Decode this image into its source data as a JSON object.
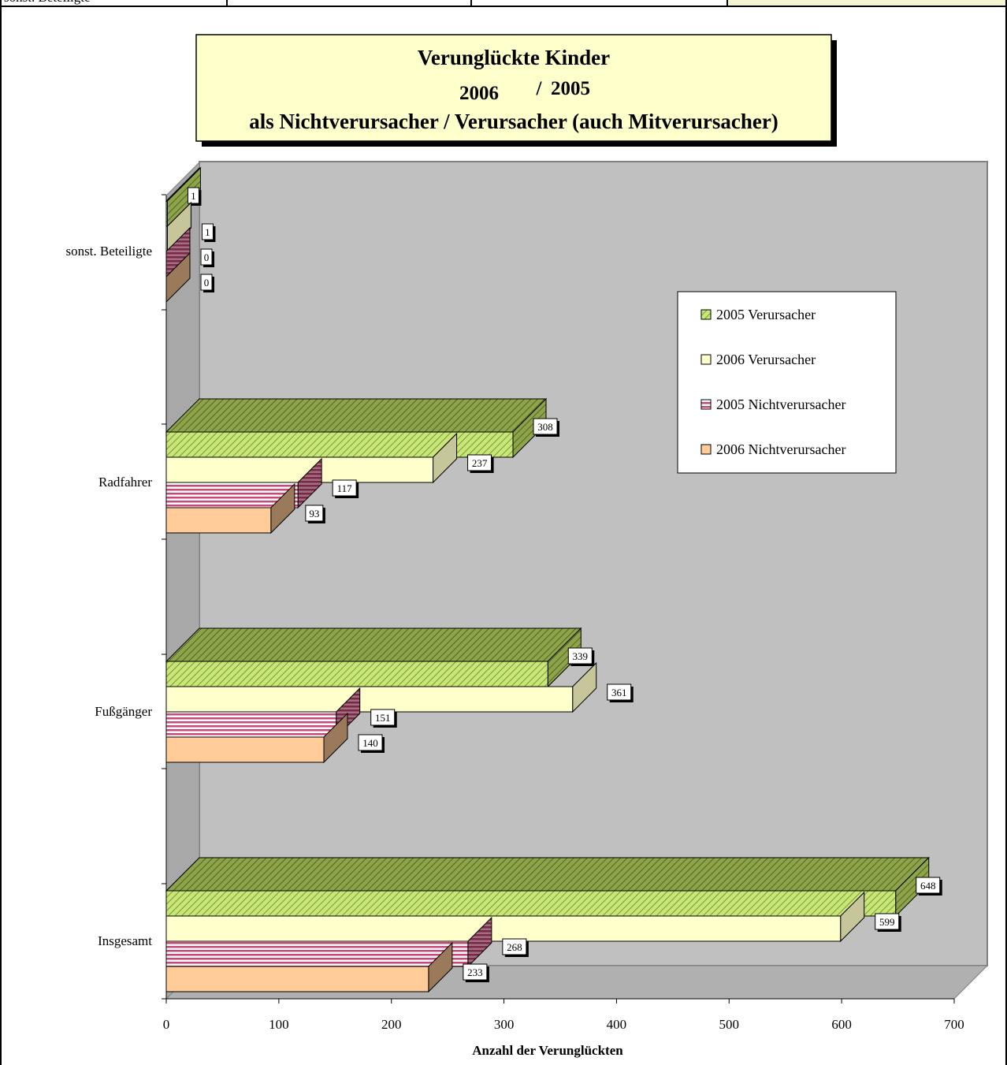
{
  "top_row": {
    "cells": [
      "sonst. Beteiligte",
      "",
      "",
      ""
    ]
  },
  "chart_data": {
    "type": "bar",
    "orientation": "horizontal",
    "three_d": true,
    "title": {
      "line1": "Verunglückte Kinder",
      "line2_left": "2006",
      "line2_sep": "/",
      "line2_right": "2005",
      "line3": "als Nichtverursacher / Verursacher (auch Mitverursacher)"
    },
    "categories": [
      "Insgesamt",
      "Fußgänger",
      "Radfahrer",
      "sonst. Beteiligte"
    ],
    "series": [
      {
        "name": "2005 Verursacher",
        "values": [
          648,
          339,
          308,
          1
        ],
        "color": "#c8e67a",
        "pattern": "diagonal"
      },
      {
        "name": "2006 Verursacher",
        "values": [
          599,
          361,
          237,
          1
        ],
        "color": "#ffffcc",
        "pattern": "solid"
      },
      {
        "name": "2005 Nichtverursacher",
        "values": [
          268,
          151,
          117,
          0
        ],
        "color": "#c84878",
        "pattern": "horizontal-stripes"
      },
      {
        "name": "2006 Nichtverursacher",
        "values": [
          233,
          140,
          93,
          0
        ],
        "color": "#ffcc99",
        "pattern": "solid"
      }
    ],
    "legend_order": [
      "2005 Verursacher",
      "2006 Verursacher",
      "2005 Nichtverursacher",
      "2006 Nichtverursacher"
    ],
    "xlabel": "Anzahl der Verunglückten",
    "xlim": [
      0,
      700
    ],
    "xticks": [
      "0",
      "100",
      "200",
      "300",
      "400",
      "500",
      "600",
      "700"
    ],
    "legend_position": "right",
    "colors": {
      "back_wall": "#c0c0c0",
      "title_box": "#ffffcc"
    }
  }
}
